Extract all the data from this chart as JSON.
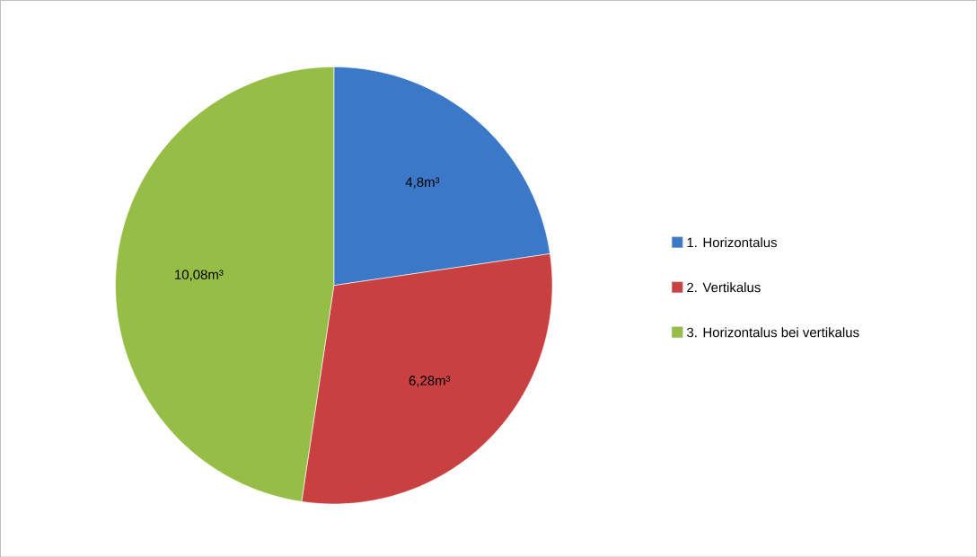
{
  "chart_data": {
    "type": "pie",
    "categories": [
      "1. Horizontalus",
      "2. Vertikalus",
      "3. Horizontalus bei vertikalus"
    ],
    "values": [
      4.8,
      6.28,
      10.08
    ],
    "colors": [
      "#3c78c8",
      "#c84040",
      "#96be46"
    ],
    "value_labels": [
      "4,8m³",
      "6,28m³",
      "10,08m³"
    ],
    "legend": "right"
  }
}
